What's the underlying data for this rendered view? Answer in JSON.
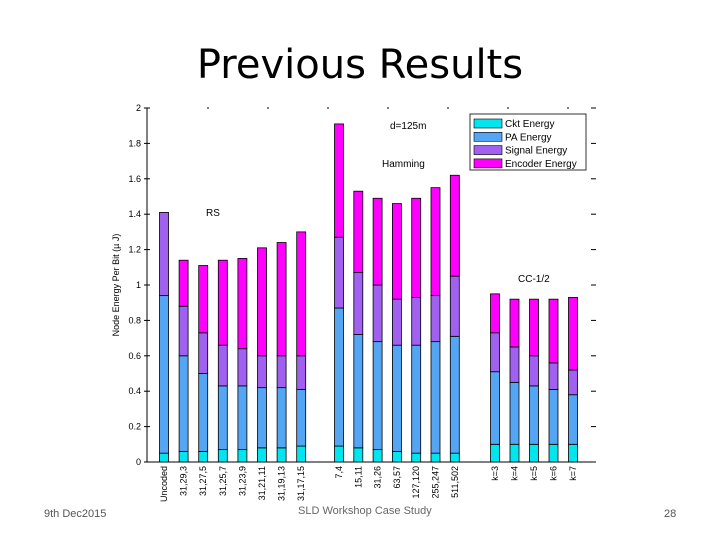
{
  "slide": {
    "title": "Previous Results",
    "footer_date": "9th Dec2015",
    "footer_center": "SLD Workshop Case Study",
    "page_number": "28"
  },
  "chart_data": {
    "type": "bar",
    "stacked": true,
    "ylabel": "Node Energy Per Bit (µ J)",
    "ylim": [
      0,
      2
    ],
    "yticks": [
      "0",
      "0.2",
      "0.4",
      "0.6",
      "0.8",
      "1",
      "1.2",
      "1.4",
      "1.6",
      "1.8",
      "2"
    ],
    "grid": false,
    "legend_position": "top-right",
    "annotations": [
      "d=125m",
      "Hamming",
      "RS",
      "CC-1/2"
    ],
    "categories": [
      "Uncoded",
      "31,29,3",
      "31,27,5",
      "31,25,7",
      "31,23,9",
      "31,21,11",
      "31,19,13",
      "31,17,15",
      "7,4",
      "15,11",
      "31,26",
      "63,57",
      "127,120",
      "255,247",
      "511,502",
      "k=3",
      "k=4",
      "k=5",
      "k=6",
      "k=7"
    ],
    "series": [
      {
        "name": "Ckt Energy",
        "color": "#00e5ee",
        "values": [
          0.05,
          0.06,
          0.06,
          0.07,
          0.07,
          0.08,
          0.08,
          0.09,
          0.09,
          0.08,
          0.07,
          0.06,
          0.05,
          0.05,
          0.05,
          0.1,
          0.1,
          0.1,
          0.1,
          0.1
        ]
      },
      {
        "name": "PA Energy",
        "color": "#55a5f5",
        "values": [
          0.89,
          0.54,
          0.44,
          0.36,
          0.36,
          0.34,
          0.34,
          0.32,
          0.78,
          0.64,
          0.61,
          0.6,
          0.61,
          0.63,
          0.66,
          0.41,
          0.35,
          0.33,
          0.31,
          0.28
        ]
      },
      {
        "name": "Signal Energy",
        "color": "#a060f0",
        "values": [
          0.47,
          0.28,
          0.23,
          0.23,
          0.21,
          0.18,
          0.18,
          0.19,
          0.4,
          0.35,
          0.32,
          0.26,
          0.27,
          0.26,
          0.34,
          0.22,
          0.2,
          0.17,
          0.15,
          0.14
        ]
      },
      {
        "name": "Encoder Energy",
        "color": "#ff00ff",
        "values": [
          0.0,
          0.26,
          0.38,
          0.48,
          0.51,
          0.61,
          0.64,
          0.7,
          0.64,
          0.46,
          0.49,
          0.54,
          0.56,
          0.61,
          0.57,
          0.22,
          0.27,
          0.32,
          0.36,
          0.41
        ]
      }
    ]
  }
}
